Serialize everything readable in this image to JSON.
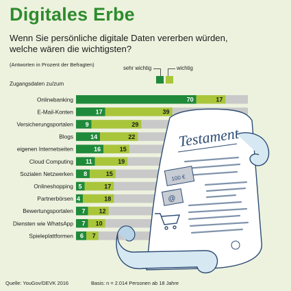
{
  "title": "Digitales Erbe",
  "subtitle_line1": "Wenn Sie persönliche digitale Daten vererben würden,",
  "subtitle_line2": "welche wären die wichtigsten?",
  "note": "(Antworten in Prozent der Befragten)",
  "axis_caption": "Zugangsdaten zu/zum",
  "source": "Quelle: YouGov/DEVK 2016",
  "basis": "Basis: n = 2.014 Personen ab 18 Jahre",
  "colors": {
    "very_important": "#1f8a3a",
    "important": "#a9c63a",
    "track": "#c9c9c9",
    "title": "#2e8b2e"
  },
  "chart_data": {
    "type": "bar",
    "stacked": true,
    "orientation": "horizontal",
    "xlim": [
      0,
      100
    ],
    "categories": [
      "Onlinebanking",
      "E-Mail-Konten",
      "Versicherungsportalen",
      "Blogs",
      "eigenen Internetseiten",
      "Cloud Computing",
      "Sozialen Netzwerken",
      "Onlineshopping",
      "Partnerbörsen",
      "Bewertungsportalen",
      "Diensten wie WhatsApp",
      "Spieleplattformen"
    ],
    "series": [
      {
        "name": "sehr wichtig",
        "values": [
          70,
          17,
          9,
          14,
          16,
          11,
          8,
          5,
          4,
          7,
          7,
          6
        ]
      },
      {
        "name": "wichtig",
        "values": [
          17,
          39,
          29,
          22,
          15,
          19,
          15,
          17,
          18,
          12,
          10,
          7
        ]
      }
    ]
  },
  "illustration": {
    "heading": "Testament",
    "banknote_text": "100 €"
  }
}
